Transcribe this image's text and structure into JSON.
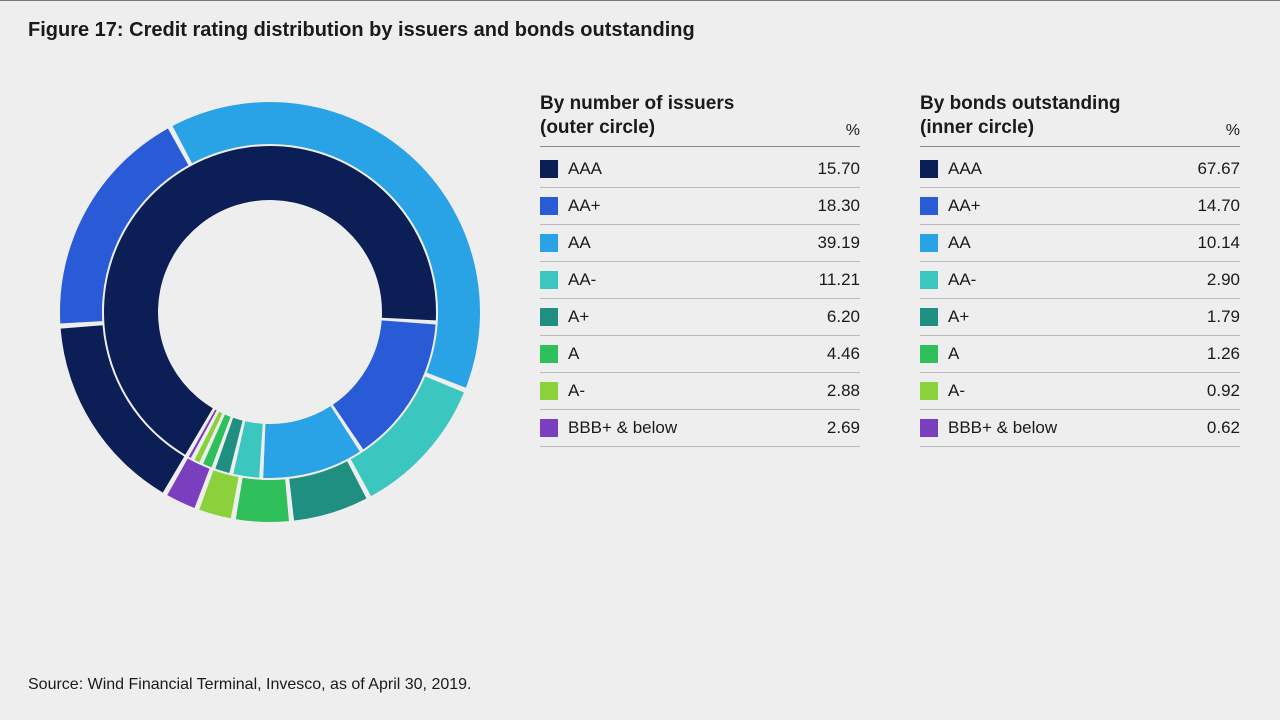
{
  "title": "Figure 17: Credit rating distribution by issuers and bonds outstanding",
  "source": "Source: Wind Financial Terminal, Invesco, as of April 30, 2019.",
  "chart": {
    "type": "nested-donut",
    "background_color": "#eeeeee",
    "gap_color": "#eeeeee",
    "gap_deg": 1.4,
    "outer": {
      "r_outer": 210,
      "r_inner": 168
    },
    "inner": {
      "r_outer": 166,
      "r_inner": 112
    },
    "start_angle_deg_from_top": 210,
    "categories": [
      "AAA",
      "AA+",
      "AA",
      "AA-",
      "A+",
      "A",
      "A-",
      "BBB+ & below"
    ],
    "colors": [
      "#0b1e55",
      "#2a5bd7",
      "#2aa3e6",
      "#3cc6c0",
      "#1e8f80",
      "#2fbf5b",
      "#8bd13c",
      "#7a3fbf"
    ],
    "outer_values": [
      15.7,
      18.3,
      39.19,
      11.21,
      6.2,
      4.46,
      2.88,
      2.69
    ],
    "inner_values": [
      67.67,
      14.7,
      10.14,
      2.9,
      1.79,
      1.26,
      0.92,
      0.62
    ]
  },
  "pct_symbol": "%",
  "tables": [
    {
      "title_lines": [
        "By number of issuers",
        "(outer circle)"
      ],
      "series_key": "outer_values"
    },
    {
      "title_lines": [
        "By bonds outstanding",
        "(inner circle)"
      ],
      "series_key": "inner_values"
    }
  ]
}
